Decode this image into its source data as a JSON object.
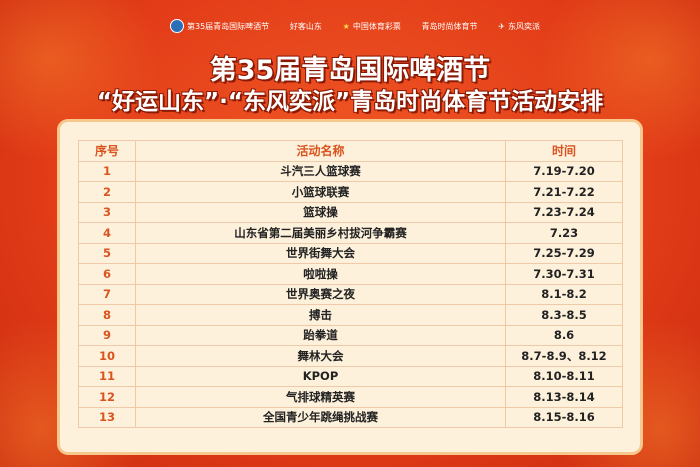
{
  "logos": [
    "第35届青岛国际啤酒节",
    "好客山东",
    "中国体育彩票",
    "青岛时尚体育节",
    "东风奕派"
  ],
  "logo_sub": {
    "lottery": "CHINA SPORTS LOTTERY"
  },
  "title_line1": "第35届青岛国际啤酒节",
  "title_line2": "“好运山东”·“东风奕派”青岛时尚体育节活动安排",
  "colors": {
    "background": "#e5401c",
    "panel": "#fdf1dc",
    "header_text": "#d9541f"
  },
  "table": {
    "headers": [
      "序号",
      "活动名称",
      "时间"
    ],
    "rows": [
      [
        "1",
        "斗汽三人篮球赛",
        "7.19-7.20"
      ],
      [
        "2",
        "小篮球联赛",
        "7.21-7.22"
      ],
      [
        "3",
        "篮球操",
        "7.23-7.24"
      ],
      [
        "4",
        "山东省第二届美丽乡村拔河争霸赛",
        "7.23"
      ],
      [
        "5",
        "世界街舞大会",
        "7.25-7.29"
      ],
      [
        "6",
        "啦啦操",
        "7.30-7.31"
      ],
      [
        "7",
        "世界奥赛之夜",
        "8.1-8.2"
      ],
      [
        "8",
        "搏击",
        "8.3-8.5"
      ],
      [
        "9",
        "跆拳道",
        "8.6"
      ],
      [
        "10",
        "舞林大会",
        "8.7-8.9、8.12"
      ],
      [
        "11",
        "KPOP",
        "8.10-8.11"
      ],
      [
        "12",
        "气排球精英赛",
        "8.13-8.14"
      ],
      [
        "13",
        "全国青少年跳绳挑战赛",
        "8.15-8.16"
      ]
    ]
  }
}
